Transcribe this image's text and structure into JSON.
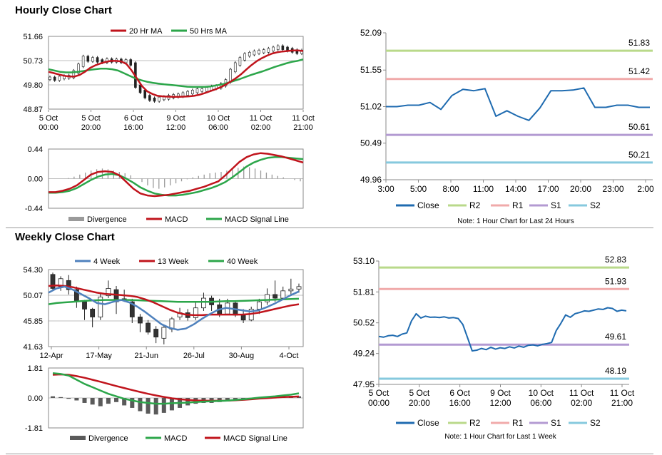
{
  "sections": {
    "hourly_title": "Hourly Close Chart",
    "weekly_title": "Weekly Close Chart"
  },
  "colors": {
    "ma_red": "#c0141c",
    "ma_green": "#2ca64a",
    "close_blue": "#1f6bb0",
    "r2": "#b9d98a",
    "r1": "#f0aaaa",
    "s1": "#b39ad2",
    "s2": "#86c9de",
    "divergence": "#9a9a9a",
    "blue_4w": "#4f81bd"
  },
  "chart_data": [
    {
      "id": "hourly_candles",
      "type": "candlestick",
      "legend": [
        "20 Hr MA",
        "50 Hrs MA"
      ],
      "y_ticks": [
        "51.66",
        "50.73",
        "49.80",
        "48.87"
      ],
      "ylim": [
        48.87,
        51.66
      ],
      "x_ticks": [
        [
          "5 Oct",
          "00:00"
        ],
        [
          "5 Oct",
          "20:00"
        ],
        [
          "6 Oct",
          "16:00"
        ],
        [
          "9 Oct",
          "12:00"
        ],
        [
          "10 Oct",
          "06:00"
        ],
        [
          "11 Oct",
          "02:00"
        ],
        [
          "11 Oct",
          "21:00"
        ]
      ],
      "close": [
        50.05,
        50.02,
        50.08,
        50.1,
        50.12,
        50.3,
        50.55,
        50.85,
        50.75,
        50.8,
        50.72,
        50.7,
        50.75,
        50.72,
        50.74,
        50.7,
        50.72,
        50.6,
        49.75,
        49.55,
        49.35,
        49.25,
        49.22,
        49.28,
        49.3,
        49.35,
        49.38,
        49.4,
        49.45,
        49.5,
        49.55,
        49.6,
        49.6,
        49.65,
        49.7,
        49.72,
        49.8,
        49.95,
        50.35,
        50.6,
        50.8,
        50.95,
        51.0,
        51.05,
        51.08,
        51.1,
        51.15,
        51.2,
        51.25,
        51.2,
        51.15,
        51.1,
        51.05,
        51.08
      ],
      "ma20": [
        50.3,
        50.25,
        50.2,
        50.15,
        50.12,
        50.12,
        50.18,
        50.3,
        50.45,
        50.55,
        50.62,
        50.68,
        50.72,
        50.72,
        50.7,
        50.6,
        50.35,
        50.05,
        49.75,
        49.55,
        49.45,
        49.38,
        49.36,
        49.35,
        49.34,
        49.34,
        49.35,
        49.36,
        49.38,
        49.42,
        49.48,
        49.55,
        49.62,
        49.7,
        49.8,
        49.92,
        50.05,
        50.2,
        50.38,
        50.55,
        50.7,
        50.82,
        50.92,
        51.0,
        51.05,
        51.08,
        51.1,
        51.12,
        51.12,
        51.1
      ],
      "ma50": [
        50.4,
        50.35,
        50.3,
        50.28,
        50.28,
        50.3,
        50.33,
        50.37,
        50.4,
        50.42,
        50.42,
        50.4,
        50.35,
        50.25,
        50.15,
        50.05,
        49.98,
        49.92,
        49.88,
        49.85,
        49.82,
        49.8,
        49.78,
        49.75,
        49.73,
        49.72,
        49.72,
        49.72,
        49.74,
        49.78,
        49.82,
        49.88,
        49.95,
        50.02,
        50.1,
        50.18,
        50.25,
        50.32,
        50.4,
        50.48,
        50.55,
        50.62,
        50.68,
        50.72,
        50.78
      ]
    },
    {
      "id": "hourly_macd",
      "type": "line+bar",
      "legend": [
        "Divergence",
        "MACD",
        "MACD Signal Line"
      ],
      "y_ticks": [
        "0.44",
        "0.00",
        "-0.44"
      ],
      "ylim": [
        -0.44,
        0.44
      ],
      "divergence": [
        0.0,
        0.01,
        0.03,
        0.06,
        0.09,
        0.12,
        0.14,
        0.15,
        0.14,
        0.12,
        0.1,
        0.08,
        0.05,
        0.0,
        -0.05,
        -0.1,
        -0.14,
        -0.15,
        -0.13,
        -0.1,
        -0.07,
        -0.04,
        -0.01,
        0.02,
        0.04,
        0.06,
        0.08,
        0.09,
        0.1,
        0.12,
        0.14,
        0.16,
        0.18,
        0.17,
        0.15,
        0.12,
        0.09,
        0.06,
        0.04,
        0.02,
        0.0,
        -0.02,
        -0.04
      ],
      "macd": [
        -0.2,
        -0.2,
        -0.18,
        -0.15,
        -0.1,
        -0.02,
        0.06,
        0.1,
        0.11,
        0.1,
        0.05,
        -0.05,
        -0.15,
        -0.22,
        -0.25,
        -0.26,
        -0.25,
        -0.24,
        -0.22,
        -0.2,
        -0.18,
        -0.15,
        -0.12,
        -0.08,
        -0.04,
        0.05,
        0.15,
        0.25,
        0.32,
        0.36,
        0.38,
        0.37,
        0.35,
        0.33,
        0.3,
        0.27,
        0.24
      ],
      "signal": [
        -0.21,
        -0.21,
        -0.2,
        -0.18,
        -0.14,
        -0.08,
        -0.02,
        0.03,
        0.06,
        0.07,
        0.05,
        0.0,
        -0.06,
        -0.13,
        -0.18,
        -0.22,
        -0.24,
        -0.25,
        -0.25,
        -0.24,
        -0.22,
        -0.2,
        -0.17,
        -0.14,
        -0.1,
        -0.05,
        0.02,
        0.1,
        0.18,
        0.24,
        0.28,
        0.31,
        0.32,
        0.32,
        0.31,
        0.3,
        0.29
      ]
    },
    {
      "id": "hourly_close_24h",
      "type": "line",
      "legend": [
        "Close",
        "R2",
        "R1",
        "S1",
        "S2"
      ],
      "note": "Note: 1 Hour Chart for Last 24 Hours",
      "y_ticks": [
        "52.09",
        "51.55",
        "51.02",
        "50.49",
        "49.96"
      ],
      "ylim": [
        49.96,
        52.09
      ],
      "x_ticks": [
        "3:00",
        "5:00",
        "8:00",
        "11:00",
        "14:00",
        "17:00",
        "20:00",
        "23:00",
        "2:00"
      ],
      "levels": {
        "R2": 51.83,
        "R1": 51.42,
        "S1": 50.61,
        "S2": 50.21
      },
      "level_labels": {
        "R2": "51.83",
        "R1": "51.42",
        "S1": "50.61",
        "S2": "50.21"
      },
      "close": [
        51.02,
        51.02,
        51.04,
        51.04,
        51.08,
        50.98,
        51.18,
        51.27,
        51.25,
        51.28,
        50.88,
        50.96,
        50.88,
        50.82,
        51.0,
        51.25,
        51.25,
        51.26,
        51.29,
        51.01,
        51.01,
        51.04,
        51.04,
        51.01,
        51.01
      ]
    },
    {
      "id": "weekly_candles",
      "type": "candlestick",
      "legend": [
        "4 Week",
        "13 Week",
        "40 Week"
      ],
      "y_ticks": [
        "54.30",
        "50.07",
        "45.85",
        "41.63"
      ],
      "ylim": [
        41.63,
        54.3
      ],
      "x_ticks": [
        "12-Apr",
        "17-May",
        "21-Jun",
        "26-Jul",
        "30-Aug",
        "4-Oct"
      ],
      "candles": [
        [
          53.5,
          51.2,
          53.8,
          50.9
        ],
        [
          51.5,
          52.8,
          53.2,
          50.8
        ],
        [
          52.5,
          51.0,
          53.4,
          50.2
        ],
        [
          51.0,
          49.2,
          51.5,
          48.0
        ],
        [
          49.0,
          47.8,
          49.3,
          46.0
        ],
        [
          47.8,
          46.5,
          48.0,
          44.8
        ],
        [
          46.5,
          49.8,
          50.5,
          46.0
        ],
        [
          50.0,
          51.2,
          52.5,
          49.6
        ],
        [
          51.0,
          49.0,
          51.6,
          47.0
        ],
        [
          49.5,
          49.4,
          51.0,
          49.0
        ],
        [
          49.0,
          46.5,
          49.5,
          45.5
        ],
        [
          46.5,
          45.5,
          47.0,
          44.0
        ],
        [
          45.5,
          44.0,
          46.0,
          43.6
        ],
        [
          44.5,
          43.2,
          45.0,
          42.2
        ],
        [
          43.0,
          44.8,
          45.2,
          42.0
        ],
        [
          44.5,
          46.2,
          46.5,
          44.0
        ],
        [
          46.5,
          47.2,
          48.0,
          46.0
        ],
        [
          47.2,
          46.4,
          47.8,
          45.9
        ],
        [
          46.4,
          48.0,
          49.0,
          46.0
        ],
        [
          48.0,
          49.6,
          50.5,
          47.5
        ],
        [
          49.6,
          48.5,
          50.0,
          47.5
        ],
        [
          48.5,
          47.0,
          49.5,
          46.5
        ],
        [
          47.0,
          48.8,
          49.5,
          46.8
        ],
        [
          48.8,
          46.8,
          49.2,
          46.5
        ],
        [
          46.8,
          46.0,
          47.8,
          45.5
        ],
        [
          46.0,
          47.8,
          48.2,
          45.8
        ],
        [
          47.8,
          49.0,
          49.5,
          47.0
        ],
        [
          49.0,
          50.2,
          51.2,
          48.5
        ],
        [
          50.2,
          49.6,
          52.5,
          49.0
        ],
        [
          49.6,
          50.8,
          51.5,
          49.3
        ],
        [
          50.8,
          51.1,
          52.8,
          50.0
        ],
        [
          51.1,
          51.5,
          52.0,
          50.5
        ]
      ],
      "ma4": [
        50.5,
        51.2,
        51.5,
        51.0,
        50.3,
        49.6,
        48.8,
        48.6,
        49.0,
        49.3,
        48.9,
        48.2,
        47.3,
        46.3,
        45.3,
        44.7,
        44.4,
        44.6,
        45.3,
        46.2,
        47.0,
        47.7,
        48.0,
        47.8,
        47.6,
        47.4,
        47.6,
        48.1,
        48.7,
        49.4,
        50.1,
        50.7
      ],
      "ma13": [
        51.6,
        51.7,
        51.6,
        51.4,
        51.1,
        50.8,
        50.5,
        50.3,
        50.2,
        50.1,
        50.0,
        49.8,
        49.4,
        48.9,
        48.3,
        47.7,
        47.2,
        46.9,
        46.8,
        46.8,
        46.9,
        46.9,
        46.9,
        46.9,
        46.9,
        47.0,
        47.2,
        47.5,
        47.8,
        48.1,
        48.4,
        48.6
      ],
      "ma40": [
        48.6,
        48.8,
        48.9,
        49.0,
        49.1,
        49.2,
        49.25,
        49.3,
        49.3,
        49.3,
        49.3,
        49.25,
        49.2,
        49.15,
        49.1,
        49.05,
        49.0,
        49.0,
        49.0,
        49.0,
        49.0,
        49.05,
        49.1,
        49.1,
        49.15,
        49.2,
        49.25,
        49.3,
        49.35,
        49.4,
        49.45,
        49.5
      ]
    },
    {
      "id": "weekly_macd",
      "type": "line+bar",
      "legend": [
        "Divergence",
        "MACD",
        "MACD Signal Line"
      ],
      "y_ticks": [
        "1.81",
        "0.00",
        "-1.81"
      ],
      "ylim": [
        -1.81,
        1.81
      ],
      "divergence": [
        0.1,
        0.05,
        -0.05,
        -0.15,
        -0.3,
        -0.4,
        -0.5,
        -0.35,
        -0.25,
        -0.45,
        -0.6,
        -0.8,
        -0.95,
        -1.0,
        -0.9,
        -0.75,
        -0.6,
        -0.45,
        -0.35,
        -0.3,
        -0.3,
        -0.25,
        -0.2,
        -0.15,
        -0.1,
        -0.05,
        0.02,
        0.05,
        0.08,
        0.1,
        0.12,
        0.1
      ],
      "macd": [
        1.5,
        1.45,
        1.35,
        1.1,
        0.85,
        0.65,
        0.45,
        0.25,
        0.1,
        -0.05,
        -0.15,
        -0.25,
        -0.3,
        -0.35,
        -0.35,
        -0.32,
        -0.3,
        -0.28,
        -0.25,
        -0.22,
        -0.2,
        -0.18,
        -0.16,
        -0.12,
        -0.08,
        -0.03,
        0.02,
        0.06,
        0.1,
        0.15,
        0.2,
        0.28
      ],
      "signal": [
        1.4,
        1.42,
        1.4,
        1.32,
        1.22,
        1.1,
        0.98,
        0.85,
        0.72,
        0.6,
        0.48,
        0.36,
        0.25,
        0.15,
        0.06,
        -0.02,
        -0.08,
        -0.12,
        -0.15,
        -0.16,
        -0.17,
        -0.17,
        -0.16,
        -0.14,
        -0.11,
        -0.08,
        -0.04,
        -0.01,
        0.02,
        0.05,
        0.07,
        0.09
      ]
    },
    {
      "id": "weekly_close_hourly",
      "type": "line",
      "legend": [
        "Close",
        "R2",
        "R1",
        "S1",
        "S2"
      ],
      "note": "Note: 1 Hour Chart for Last 1 Week",
      "y_ticks": [
        "53.10",
        "51.81",
        "50.52",
        "49.24",
        "47.95"
      ],
      "ylim": [
        47.95,
        53.1
      ],
      "x_ticks": [
        [
          "5 Oct",
          "00:00"
        ],
        [
          "5 Oct",
          "20:00"
        ],
        [
          "6 Oct",
          "16:00"
        ],
        [
          "9 Oct",
          "12:00"
        ],
        [
          "10 Oct",
          "06:00"
        ],
        [
          "11 Oct",
          "02:00"
        ],
        [
          "11 Oct",
          "21:00"
        ]
      ],
      "levels": {
        "R2": 52.83,
        "R1": 51.93,
        "S1": 49.61,
        "S2": 48.19
      },
      "level_labels": {
        "R2": "52.83",
        "R1": "51.93",
        "S1": "49.61",
        "S2": "48.19"
      },
      "close": [
        49.95,
        49.92,
        49.98,
        50.0,
        49.95,
        50.05,
        50.1,
        50.6,
        50.9,
        50.72,
        50.8,
        50.75,
        50.76,
        50.74,
        50.77,
        50.72,
        50.74,
        50.7,
        50.45,
        49.9,
        49.35,
        49.38,
        49.45,
        49.4,
        49.5,
        49.42,
        49.48,
        49.45,
        49.52,
        49.47,
        49.55,
        49.5,
        49.58,
        49.6,
        49.56,
        49.62,
        49.65,
        49.7,
        50.2,
        50.5,
        50.85,
        50.75,
        50.9,
        50.95,
        51.02,
        51.0,
        51.05,
        51.1,
        51.08,
        51.15,
        51.12,
        51.0,
        51.05,
        51.02
      ]
    }
  ]
}
